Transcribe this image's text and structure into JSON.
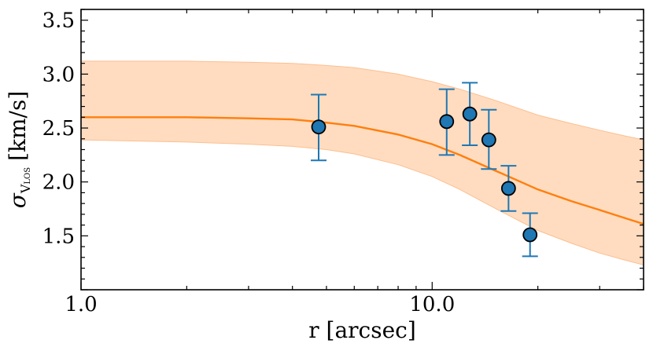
{
  "chart_data": {
    "type": "scatter",
    "title": "",
    "xlabel": "r [arcsec]",
    "ylabel": "σ",
    "ylabel_subscript_main": "V",
    "ylabel_subscript_small": "LOS",
    "ylabel_units": "[km/s]",
    "x_scale": "log",
    "xlim": [
      1.0,
      40.0
    ],
    "ylim": [
      1.0,
      3.6
    ],
    "x_ticks": [
      {
        "value": 1.0,
        "label": "1.0"
      },
      {
        "value": 10.0,
        "label": "10.0"
      }
    ],
    "y_ticks": [
      {
        "value": 1.5,
        "label": "1.5"
      },
      {
        "value": 2.0,
        "label": "2.0"
      },
      {
        "value": 2.5,
        "label": "2.5"
      },
      {
        "value": 3.0,
        "label": "3.0"
      },
      {
        "value": 3.5,
        "label": "3.5"
      }
    ],
    "grid": false,
    "points": [
      {
        "x": 4.75,
        "y": 2.51,
        "err_low": 2.2,
        "err_high": 2.81
      },
      {
        "x": 11.0,
        "y": 2.56,
        "err_low": 2.25,
        "err_high": 2.86
      },
      {
        "x": 12.8,
        "y": 2.63,
        "err_low": 2.34,
        "err_high": 2.92
      },
      {
        "x": 14.5,
        "y": 2.39,
        "err_low": 2.12,
        "err_high": 2.67
      },
      {
        "x": 16.5,
        "y": 1.94,
        "err_low": 1.73,
        "err_high": 2.15
      },
      {
        "x": 19.0,
        "y": 1.51,
        "err_low": 1.31,
        "err_high": 1.71
      }
    ],
    "model_curve": {
      "x": [
        1.0,
        2.0,
        3.0,
        4.0,
        5.0,
        6.0,
        8.0,
        10.0,
        12.0,
        15.0,
        20.0,
        25.0,
        30.0,
        35.0,
        40.0
      ],
      "y": [
        2.6,
        2.6,
        2.59,
        2.58,
        2.55,
        2.52,
        2.44,
        2.35,
        2.25,
        2.11,
        1.93,
        1.82,
        1.74,
        1.67,
        1.61
      ]
    },
    "model_band": {
      "x": [
        1.0,
        2.0,
        3.0,
        4.0,
        5.0,
        6.0,
        8.0,
        10.0,
        12.0,
        15.0,
        20.0,
        25.0,
        30.0,
        35.0,
        40.0
      ],
      "lower": [
        2.39,
        2.37,
        2.35,
        2.33,
        2.3,
        2.26,
        2.16,
        2.05,
        1.93,
        1.76,
        1.55,
        1.43,
        1.34,
        1.28,
        1.23
      ],
      "upper": [
        3.12,
        3.12,
        3.11,
        3.1,
        3.08,
        3.06,
        3.0,
        2.93,
        2.86,
        2.76,
        2.62,
        2.54,
        2.48,
        2.43,
        2.39
      ]
    },
    "colors": {
      "marker_fill": "#1f77b4",
      "marker_edge": "#000000",
      "errorbar": "#1f77b4",
      "curve": "#ff7f0e",
      "band_fill": "#ffdcc0",
      "band_edge": "#fbbf8f"
    }
  }
}
